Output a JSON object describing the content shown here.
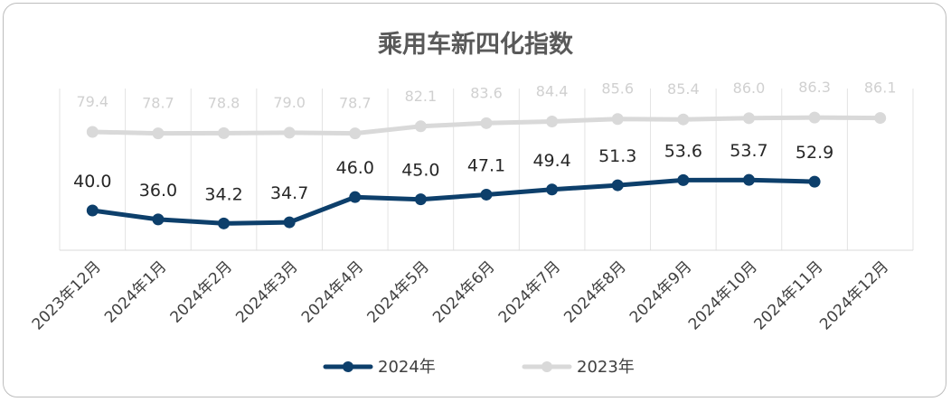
{
  "chart_data": {
    "type": "line",
    "title": "乘用车新四化指数",
    "categories": [
      "2023年12月",
      "2024年1月",
      "2024年2月",
      "2024年3月",
      "2024年4月",
      "2024年5月",
      "2024年6月",
      "2024年7月",
      "2024年8月",
      "2024年9月",
      "2024年10月",
      "2024年11月",
      "2024年12月"
    ],
    "series": [
      {
        "name": "2024年",
        "color": "#0d3f6b",
        "values": [
          40.0,
          36.0,
          34.2,
          34.7,
          46.0,
          45.0,
          47.1,
          49.4,
          51.3,
          53.6,
          53.7,
          52.9,
          null
        ]
      },
      {
        "name": "2023年",
        "color": "#d9d9d9",
        "values": [
          79.4,
          78.7,
          78.8,
          79.0,
          78.7,
          82.1,
          83.6,
          84.4,
          85.6,
          85.4,
          86.0,
          86.3,
          86.1
        ]
      }
    ],
    "xlabel": "",
    "ylabel": "",
    "grid": "vertical",
    "legend": "bottom"
  }
}
